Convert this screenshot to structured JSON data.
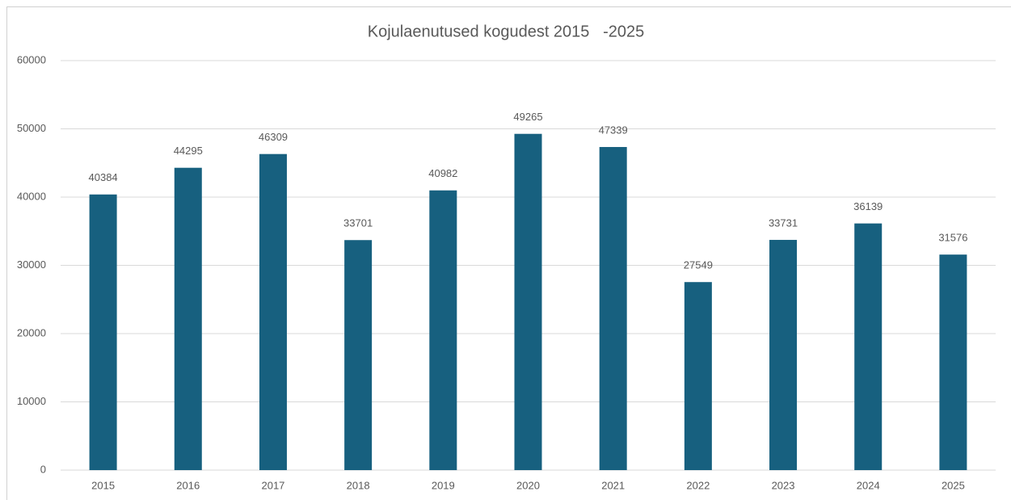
{
  "chart_data": {
    "type": "bar",
    "title": "Kojulaenutused kogudest 2015   -2025",
    "categories": [
      "2015",
      "2016",
      "2017",
      "2018",
      "2019",
      "2020",
      "2021",
      "2022",
      "2023",
      "2024",
      "2025"
    ],
    "values": [
      40384,
      44295,
      46309,
      33701,
      40982,
      49265,
      47339,
      27549,
      33731,
      36139,
      31576
    ],
    "color": "#17607f",
    "ylim": [
      0,
      60000
    ],
    "yticks": [
      0,
      10000,
      20000,
      30000,
      40000,
      50000,
      60000
    ],
    "grid": true
  }
}
